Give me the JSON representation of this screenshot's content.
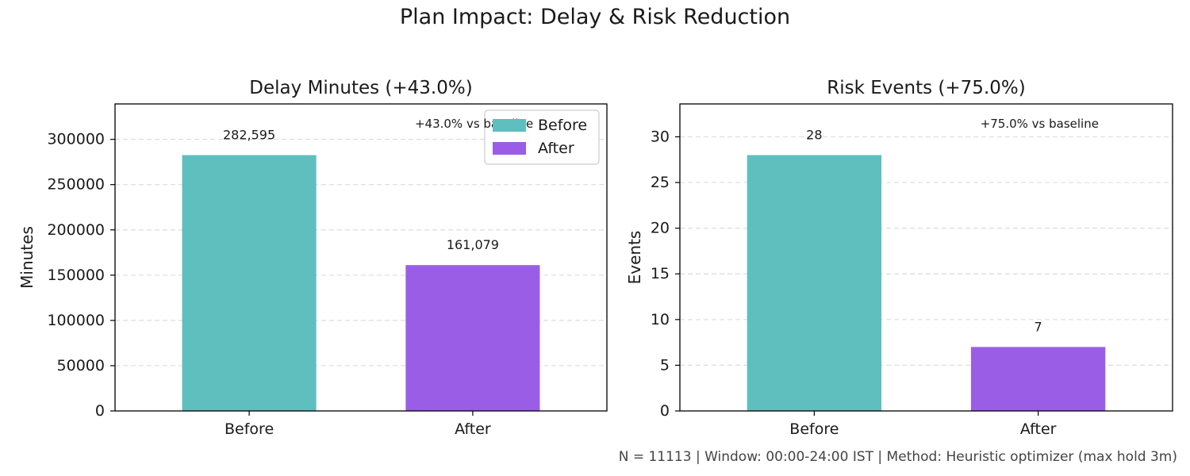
{
  "figure": {
    "title": "Plan Impact: Delay & Risk Reduction",
    "footnote": "N = 11113 | Window: 00:00-24:00 IST | Method: Heuristic optimizer (max hold 3m)"
  },
  "colors": {
    "before": "#5fbfbf",
    "after": "#9a5ee6",
    "grid": "#dddddd",
    "text": "#1a1a1a"
  },
  "chart_data": [
    {
      "type": "bar",
      "title": "Delay Minutes (+43.0%)",
      "xlabel": "",
      "ylabel": "Minutes",
      "categories": [
        "Before",
        "After"
      ],
      "values": [
        282595,
        161079
      ],
      "value_labels": [
        "282,595",
        "161,079"
      ],
      "ylim": [
        0,
        339114
      ],
      "yticks": [
        0,
        50000,
        100000,
        150000,
        200000,
        250000,
        300000
      ],
      "ytick_labels": [
        "0",
        "50000",
        "100000",
        "150000",
        "200000",
        "250000",
        "300000"
      ],
      "grid": true,
      "annotation": "+43.0% vs baseline",
      "legend": {
        "placement": "top-right",
        "entries": [
          {
            "name": "Before",
            "color": "#5fbfbf"
          },
          {
            "name": "After",
            "color": "#9a5ee6"
          }
        ]
      }
    },
    {
      "type": "bar",
      "title": "Risk Events (+75.0%)",
      "xlabel": "",
      "ylabel": "Events",
      "categories": [
        "Before",
        "After"
      ],
      "values": [
        28,
        7
      ],
      "value_labels": [
        "28",
        "7"
      ],
      "ylim": [
        0,
        33.6
      ],
      "yticks": [
        0,
        5,
        10,
        15,
        20,
        25,
        30
      ],
      "ytick_labels": [
        "0",
        "5",
        "10",
        "15",
        "20",
        "25",
        "30"
      ],
      "grid": true,
      "annotation": "+75.0% vs baseline",
      "legend": null
    }
  ]
}
